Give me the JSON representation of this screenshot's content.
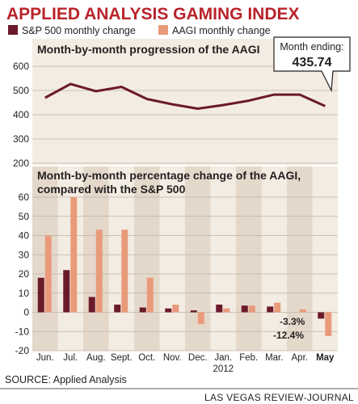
{
  "title": "APPLIED ANALYSIS GAMING INDEX",
  "legend": [
    {
      "label": "S&P 500 monthly change",
      "color": "#6b1a2b"
    },
    {
      "label": "AAGI monthly change",
      "color": "#e99a7a"
    }
  ],
  "callout": {
    "title": "Month ending:",
    "value": "435.74"
  },
  "source": "SOURCE: Applied Analysis",
  "credit": "LAS VEGAS REVIEW-JOURNAL",
  "colors": {
    "title": "#b8242a",
    "line": "#6b1a2b",
    "sp500": "#6b1a2b",
    "aagi": "#e99a7a",
    "panel": "#f3ece2",
    "stripe": "#e4d8ca"
  },
  "chart_data": [
    {
      "type": "line",
      "title": "Month-by-month progression of the AAGI",
      "categories": [
        "Jun.",
        "Jul.",
        "Aug.",
        "Sept.",
        "Oct.",
        "Nov.",
        "Dec.",
        "Jan.",
        "Feb.",
        "Mar.",
        "Apr.",
        "May"
      ],
      "series": [
        {
          "values": [
            470,
            527,
            497,
            515,
            465,
            443,
            425,
            440,
            458,
            483,
            483,
            435.74
          ]
        }
      ],
      "yticks": [
        200,
        300,
        400,
        500,
        600
      ],
      "ylim": [
        200,
        600
      ],
      "grid": true
    },
    {
      "type": "bar",
      "title": "Month-by-month percentage change of the AAGI,",
      "title_line2": "compared with the S&P 500",
      "categories": [
        "Jun.",
        "Jul.",
        "Aug.",
        "Sept.",
        "Oct.",
        "Nov.",
        "Dec.",
        "Jan.",
        "Feb.",
        "Mar.",
        "Apr.",
        "May"
      ],
      "category_sublabel": {
        "index": 7,
        "text": "2012"
      },
      "bold_category_index": 11,
      "series": [
        {
          "name": "S&P 500 monthly change",
          "values": [
            18,
            22,
            8,
            4,
            2.5,
            2,
            1,
            4,
            3.5,
            3,
            0,
            -3.3
          ]
        },
        {
          "name": "AAGI monthly change",
          "values": [
            40,
            60,
            43,
            43,
            18,
            4,
            -6,
            2,
            3.5,
            5,
            1.5,
            -12.4
          ]
        }
      ],
      "data_labels": [
        "-3.3%",
        "-12.4%"
      ],
      "yticks": [
        -20,
        -10,
        0,
        10,
        20,
        30,
        40,
        50,
        60
      ],
      "ylim": [
        -20,
        60
      ],
      "grid": true
    }
  ]
}
